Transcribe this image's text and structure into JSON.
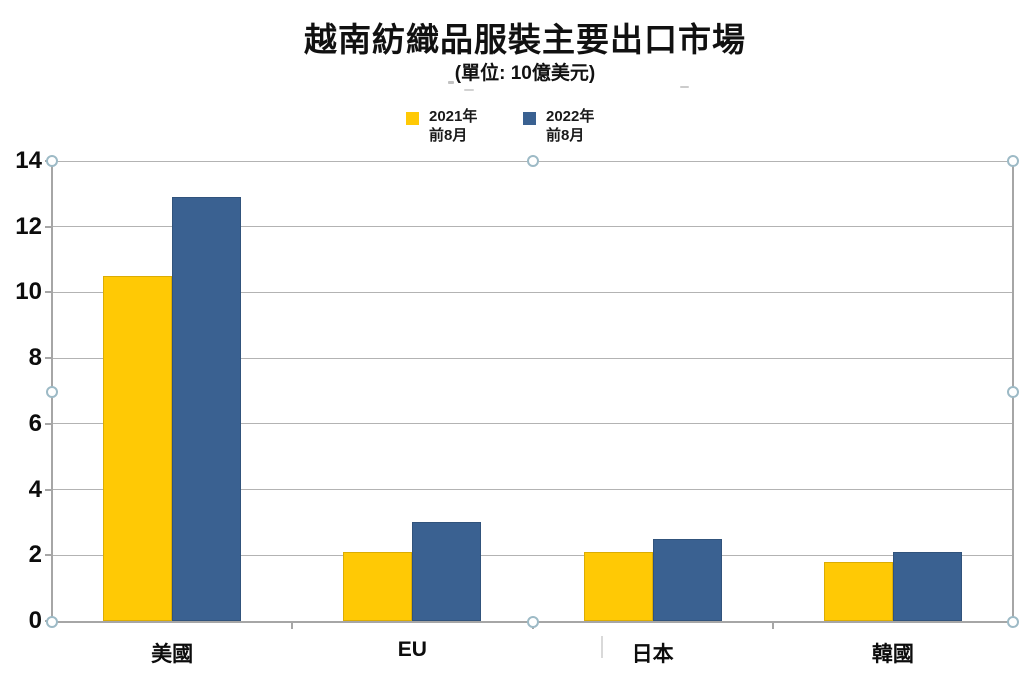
{
  "chart_data": {
    "type": "bar",
    "title": "越南紡織品服裝主要出口市場",
    "subtitle": "(單位: 10億美元)",
    "categories": [
      "美國",
      "EU",
      "日本",
      "韓國"
    ],
    "series": [
      {
        "name": "2021年前8月",
        "legend_lines": [
          "2021年",
          "前8月"
        ],
        "color": "#FFC905",
        "values": [
          10.5,
          2.1,
          2.1,
          1.8
        ]
      },
      {
        "name": "2022年前8月",
        "legend_lines": [
          "2022年",
          "前8月"
        ],
        "color": "#3A6191",
        "values": [
          12.9,
          3.0,
          2.5,
          2.1
        ]
      }
    ],
    "xlabel": "",
    "ylabel": "",
    "ylim": [
      0,
      14
    ],
    "yticks": [
      0,
      2,
      4,
      6,
      8,
      10,
      12,
      14
    ],
    "grid": true,
    "legend_position": "top"
  },
  "colors": {
    "series_2021": "#FFC905",
    "series_2022": "#3A6191",
    "axis": "#A6A6A6",
    "gridline": "#B3B3B3",
    "selection_handle": "#9DBAC6",
    "text": "#111111"
  }
}
